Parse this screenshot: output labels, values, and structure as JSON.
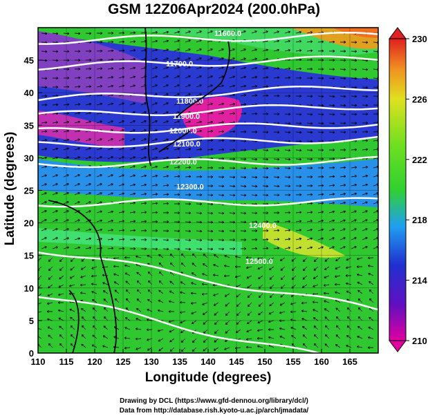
{
  "title": "GSM 12Z06Apr2024 (200.0hPa)",
  "x_axis": {
    "label": "Longitude (degrees)",
    "range": [
      110,
      170
    ],
    "ticks": [
      "110",
      "115",
      "120",
      "125",
      "130",
      "135",
      "140",
      "145",
      "150",
      "155",
      "160",
      "165"
    ]
  },
  "y_axis": {
    "label": "Latitude (degrees)",
    "range": [
      0,
      50
    ],
    "ticks": [
      "0",
      "5",
      "10",
      "15",
      "20",
      "25",
      "30",
      "35",
      "40",
      "45"
    ]
  },
  "colorbar": {
    "range": [
      210,
      230
    ],
    "ticks": [
      "210",
      "214",
      "218",
      "222",
      "226",
      "230"
    ],
    "colors": [
      "#e000a0",
      "#2040d0",
      "#20b0f0",
      "#30d030",
      "#80e020",
      "#e0e020",
      "#f08020",
      "#e02020"
    ]
  },
  "contours": [
    {
      "label": "11600.0"
    },
    {
      "label": "11700.0"
    },
    {
      "label": "11800.0"
    },
    {
      "label": "11900.0"
    },
    {
      "label": "12000.0"
    },
    {
      "label": "12100.0"
    },
    {
      "label": "12200.0"
    },
    {
      "label": "12300.0"
    },
    {
      "label": "12400.0"
    },
    {
      "label": "12500.0"
    }
  ],
  "credits": [
    "Drawing by DCL (https://www.gfd-dennou.org/library/dcl/)",
    "Data from http://database.rish.kyoto-u.ac.jp/arch/jmadata/"
  ]
}
